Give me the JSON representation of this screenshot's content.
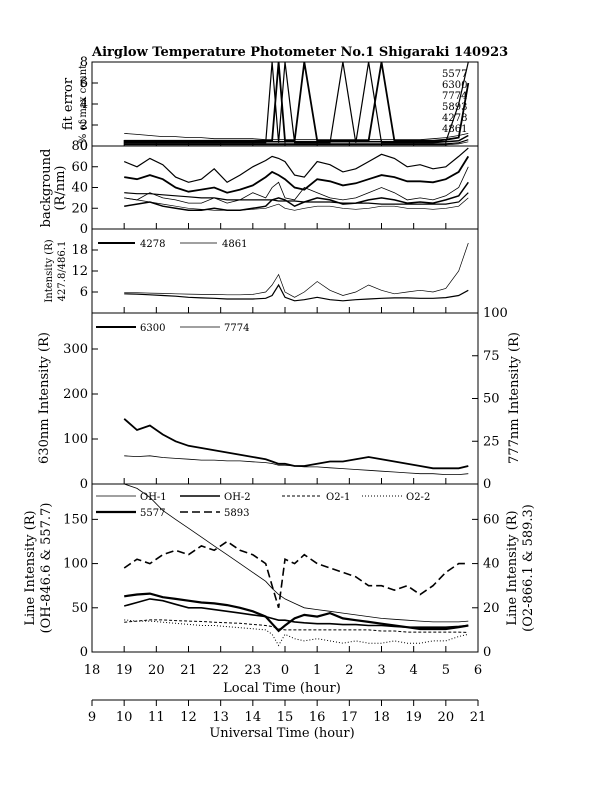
{
  "title": "Airglow Temperature Photometer No.1  Shigaraki  140923",
  "x_axis": {
    "local_label": "Local Time (hour)",
    "local_ticks": [
      "18",
      "19",
      "20",
      "21",
      "22",
      "23",
      "0",
      "1",
      "2",
      "3",
      "4",
      "5",
      "6"
    ],
    "ut_label": "Universal Time (hour)",
    "ut_ticks": [
      "9",
      "10",
      "11",
      "12",
      "13",
      "14",
      "15",
      "16",
      "17",
      "18",
      "19",
      "20",
      "21"
    ]
  },
  "panels": [
    {
      "id": "fit-error",
      "ylabel1": "fit error",
      "ylabel2": "% of max count",
      "yticks": [
        "0",
        "2",
        "4",
        "6",
        "8"
      ],
      "legend": [
        "5577",
        "6300",
        "7774",
        "5893",
        "4278",
        "4861"
      ]
    },
    {
      "id": "background",
      "ylabel1": "background",
      "ylabel2": "(R/nm)",
      "yticks": [
        "0",
        "20",
        "40",
        "60",
        "80"
      ]
    },
    {
      "id": "intensity-blue",
      "ylabel1": "Intensity (R)",
      "ylabel2": "427.8/486.1",
      "yticks": [
        "6",
        "12",
        "18"
      ],
      "legend": [
        "4278",
        "4861"
      ]
    },
    {
      "id": "red-green",
      "ylabel_left": "630nm Intensity (R)",
      "ylabel_right": "777nm Intensity (R)",
      "yticks_left": [
        "0",
        "100",
        "200",
        "300"
      ],
      "yticks_right": [
        "0",
        "25",
        "50",
        "75",
        "100"
      ],
      "legend": [
        "6300",
        "7774"
      ]
    },
    {
      "id": "line-intensity",
      "ylabel_left1": "Line Intensity (R)",
      "ylabel_left2": "(OH-846.6 & 557.7)",
      "ylabel_right1": "Line Intensity (R)",
      "ylabel_right2": "(O2-866.1 & 589.3)",
      "yticks_left": [
        "0",
        "50",
        "100",
        "150"
      ],
      "yticks_right": [
        "0",
        "20",
        "40",
        "60"
      ],
      "legend": [
        "OH-1",
        "OH-2",
        "O2-1",
        "O2-2",
        "5577",
        "5893"
      ]
    }
  ],
  "chart_data": {
    "type": "line",
    "title": "Airglow Temperature Photometer No.1  Shigaraki  140923",
    "xlabel": "Local Time (hour)",
    "xlabel2": "Universal Time (hour)",
    "xlim_local": [
      18,
      30
    ],
    "x": [
      19.0,
      19.4,
      19.8,
      20.2,
      20.6,
      21.0,
      21.4,
      21.8,
      22.2,
      22.6,
      23.0,
      23.4,
      23.6,
      23.8,
      24.0,
      24.3,
      24.6,
      25.0,
      25.4,
      25.8,
      26.2,
      26.6,
      27.0,
      27.4,
      27.8,
      28.2,
      28.6,
      29.0,
      29.4,
      29.7
    ],
    "panels": [
      {
        "name": "fit error",
        "ylim": [
          0,
          8
        ],
        "series": [
          {
            "name": "5577",
            "values": [
              0.3,
              0.3,
              0.3,
              0.3,
              0.3,
              0.3,
              0.3,
              0.3,
              0.3,
              0.3,
              0.3,
              0.3,
              8,
              0.3,
              8,
              0.3,
              0.3,
              0.3,
              0.3,
              8,
              0.3,
              8,
              0.3,
              0.3,
              0.3,
              0.3,
              0.3,
              0.4,
              4,
              8
            ]
          },
          {
            "name": "6300",
            "values": [
              0.5,
              0.5,
              0.5,
              0.5,
              0.5,
              0.5,
              0.5,
              0.5,
              0.5,
              0.5,
              0.5,
              0.5,
              0.5,
              8,
              0.5,
              0.5,
              8,
              0.5,
              0.5,
              0.5,
              0.5,
              0.5,
              8,
              0.5,
              0.5,
              0.5,
              0.5,
              0.6,
              0.8,
              6
            ]
          },
          {
            "name": "7774",
            "values": [
              1.2,
              1.1,
              1.0,
              0.9,
              0.9,
              0.8,
              0.8,
              0.7,
              0.7,
              0.7,
              0.7,
              0.6,
              0.6,
              0.6,
              0.6,
              0.6,
              0.6,
              0.6,
              0.6,
              0.6,
              0.6,
              0.6,
              0.6,
              0.6,
              0.6,
              0.6,
              0.7,
              0.8,
              1.0,
              1.2
            ]
          },
          {
            "name": "5893",
            "values": [
              0.4,
              0.4,
              0.4,
              0.4,
              0.4,
              0.4,
              0.4,
              0.4,
              0.4,
              0.4,
              0.4,
              0.4,
              0.4,
              0.4,
              0.4,
              0.4,
              0.4,
              0.4,
              0.4,
              0.4,
              0.4,
              0.4,
              0.4,
              0.4,
              0.4,
              0.4,
              0.4,
              0.4,
              0.5,
              1.0
            ]
          },
          {
            "name": "4278",
            "values": [
              0.2,
              0.2,
              0.2,
              0.2,
              0.2,
              0.2,
              0.2,
              0.2,
              0.2,
              0.2,
              0.2,
              0.2,
              0.2,
              0.2,
              0.2,
              0.2,
              0.2,
              0.2,
              0.2,
              0.2,
              0.2,
              0.2,
              0.2,
              0.2,
              0.2,
              0.2,
              0.2,
              0.2,
              0.3,
              0.6
            ]
          },
          {
            "name": "4861",
            "values": [
              0.1,
              0.1,
              0.1,
              0.1,
              0.1,
              0.1,
              0.1,
              0.1,
              0.1,
              0.1,
              0.1,
              0.1,
              0.1,
              0.1,
              0.1,
              0.1,
              0.1,
              0.1,
              0.1,
              0.1,
              0.1,
              0.1,
              0.1,
              0.1,
              0.1,
              0.1,
              0.1,
              0.1,
              0.2,
              0.4
            ]
          }
        ]
      },
      {
        "name": "background (R/nm)",
        "ylim": [
          0,
          80
        ],
        "series": [
          {
            "name": "5577",
            "values": [
              65,
              60,
              68,
              62,
              50,
              45,
              48,
              58,
              45,
              52,
              60,
              66,
              70,
              68,
              65,
              52,
              50,
              65,
              62,
              55,
              58,
              65,
              72,
              68,
              60,
              62,
              58,
              60,
              70,
              78
            ]
          },
          {
            "name": "6300",
            "values": [
              50,
              48,
              52,
              48,
              40,
              36,
              38,
              40,
              35,
              38,
              42,
              50,
              55,
              52,
              48,
              40,
              38,
              48,
              46,
              42,
              44,
              48,
              52,
              50,
              46,
              46,
              45,
              48,
              55,
              70
            ]
          },
          {
            "name": "7774",
            "values": [
              30,
              28,
              35,
              30,
              28,
              25,
              25,
              30,
              25,
              28,
              35,
              30,
              40,
              45,
              30,
              28,
              40,
              35,
              30,
              28,
              30,
              35,
              40,
              35,
              28,
              30,
              28,
              32,
              40,
              60
            ]
          },
          {
            "name": "5893",
            "values": [
              22,
              24,
              26,
              22,
              20,
              18,
              18,
              20,
              18,
              18,
              20,
              22,
              28,
              30,
              28,
              22,
              26,
              30,
              28,
              24,
              25,
              28,
              30,
              28,
              25,
              26,
              25,
              28,
              32,
              45
            ]
          },
          {
            "name": "4278",
            "values": [
              35,
              34,
              34,
              33,
              32,
              31,
              30,
              30,
              28,
              28,
              28,
              28,
              28,
              27,
              27,
              27,
              26,
              26,
              26,
              25,
              25,
              25,
              24,
              24,
              24,
              24,
              24,
              24,
              26,
              35
            ]
          },
          {
            "name": "4861",
            "values": [
              30,
              28,
              26,
              24,
              22,
              20,
              19,
              18,
              18,
              18,
              19,
              20,
              22,
              24,
              20,
              18,
              20,
              22,
              22,
              20,
              19,
              20,
              22,
              22,
              20,
              20,
              19,
              20,
              22,
              30
            ]
          }
        ]
      },
      {
        "name": "Intensity (R) 427.8/486.1",
        "ylim": [
          0,
          24
        ],
        "series": [
          {
            "name": "4278",
            "values": [
              5.5,
              5.4,
              5.2,
              5.0,
              4.8,
              4.5,
              4.3,
              4.2,
              4.0,
              4.0,
              4.0,
              4.2,
              5.0,
              8.0,
              4.5,
              3.5,
              3.8,
              4.5,
              3.8,
              3.5,
              3.8,
              4.0,
              4.2,
              4.3,
              4.3,
              4.2,
              4.2,
              4.4,
              5.0,
              6.5
            ]
          },
          {
            "name": "4861",
            "values": [
              5.8,
              5.8,
              5.7,
              5.6,
              5.5,
              5.4,
              5.3,
              5.3,
              5.2,
              5.2,
              5.3,
              6.0,
              8.0,
              11.0,
              6.0,
              4.5,
              6.0,
              9.0,
              6.5,
              5.0,
              6.0,
              8.0,
              6.5,
              5.5,
              6.0,
              6.5,
              6.0,
              7.0,
              12.0,
              20.0
            ]
          }
        ]
      },
      {
        "name": "630nm Intensity (R) / 777nm Intensity (R)",
        "ylim_left": [
          0,
          380
        ],
        "ylim_right": [
          0,
          100
        ],
        "series": [
          {
            "name": "6300",
            "axis": "left",
            "values": [
              145,
              120,
              130,
              110,
              95,
              85,
              80,
              75,
              70,
              65,
              60,
              55,
              50,
              45,
              45,
              40,
              40,
              45,
              50,
              50,
              55,
              60,
              55,
              50,
              45,
              40,
              35,
              35,
              35,
              40
            ]
          },
          {
            "name": "7774",
            "axis": "right",
            "values": [
              16.5,
              16,
              16.5,
              15.5,
              15,
              14.5,
              14,
              14,
              13.5,
              13.5,
              13,
              12.5,
              12,
              11,
              11,
              10.5,
              10,
              10,
              9.5,
              9,
              8.5,
              8,
              7.5,
              7,
              6.5,
              6,
              6,
              5.5,
              5.5,
              6
            ]
          }
        ]
      },
      {
        "name": "Line Intensity (R)",
        "ylim_left": [
          0,
          190
        ],
        "ylim_right": [
          0,
          76
        ],
        "series": [
          {
            "name": "OH-1",
            "axis": "left",
            "values": [
              190,
              185,
              175,
              160,
              150,
              140,
              130,
              120,
              110,
              100,
              90,
              80,
              72,
              65,
              60,
              55,
              50,
              48,
              46,
              44,
              42,
              40,
              38,
              37,
              36,
              35,
              34,
              34,
              34,
              35
            ]
          },
          {
            "name": "OH-2",
            "axis": "left",
            "values": [
              52,
              56,
              60,
              58,
              54,
              50,
              50,
              48,
              46,
              44,
              42,
              40,
              38,
              36,
              36,
              34,
              33,
              32,
              32,
              31,
              31,
              30,
              30,
              29,
              28,
              28,
              28,
              28,
              29,
              30
            ]
          },
          {
            "name": "O2-1",
            "axis": "right",
            "values": [
              13.5,
              14,
              14.5,
              14.5,
              14.2,
              14,
              13.8,
              13.5,
              13.2,
              13,
              12.5,
              12,
              11.5,
              10.5,
              10,
              10,
              10,
              10,
              10,
              10,
              10,
              10,
              9.5,
              9.5,
              9,
              9,
              9,
              9,
              9,
              8.8
            ]
          },
          {
            "name": "O2-2",
            "axis": "right",
            "values": [
              14.5,
              14,
              14,
              13.5,
              13,
              12.5,
              12,
              12,
              11.5,
              11,
              10.5,
              10,
              8,
              3,
              8,
              6,
              5,
              6,
              5,
              4,
              5,
              4,
              4,
              5,
              4,
              4,
              5,
              5,
              7,
              8
            ]
          },
          {
            "name": "5577",
            "axis": "left",
            "values": [
              63,
              65,
              66,
              62,
              60,
              58,
              56,
              55,
              53,
              50,
              46,
              40,
              32,
              24,
              30,
              38,
              42,
              40,
              44,
              38,
              36,
              34,
              32,
              30,
              28,
              26,
              26,
              26,
              28,
              30
            ]
          },
          {
            "name": "5893",
            "axis": "right",
            "values": [
              38,
              42,
              40,
              44,
              46,
              44,
              48,
              46,
              50,
              46,
              44,
              40,
              30,
              20,
              42,
              40,
              44,
              40,
              38,
              36,
              34,
              30,
              30,
              28,
              30,
              26,
              30,
              36,
              40,
              40
            ]
          }
        ]
      }
    ]
  }
}
